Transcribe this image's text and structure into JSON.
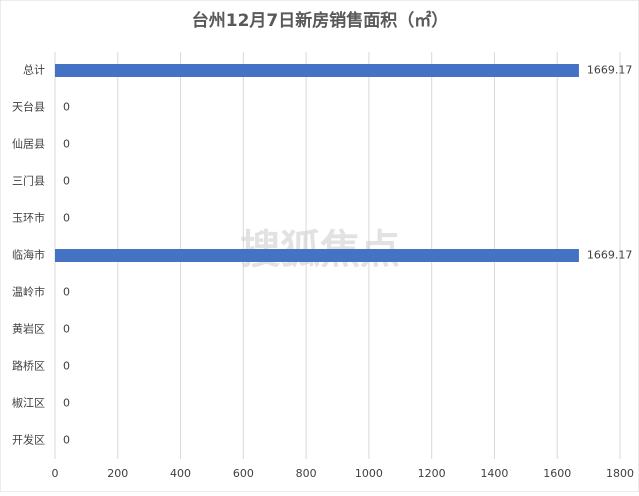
{
  "chart_data": {
    "type": "barh",
    "title": "台州12月7日新房销售面积（㎡）",
    "watermark": "搜狐焦点",
    "categories": [
      "总计",
      "天台县",
      "仙居县",
      "三门县",
      "玉环市",
      "临海市",
      "温岭市",
      "黄岩区",
      "路桥区",
      "椒江区",
      "开发区"
    ],
    "values": [
      1669.17,
      0,
      0,
      0,
      0,
      1669.17,
      0,
      0,
      0,
      0,
      0
    ],
    "color": "#4472c4",
    "xlim": [
      0,
      1800
    ],
    "xticks": [
      0,
      200,
      400,
      600,
      800,
      1000,
      1200,
      1400,
      1600,
      1800
    ],
    "grid": true
  }
}
